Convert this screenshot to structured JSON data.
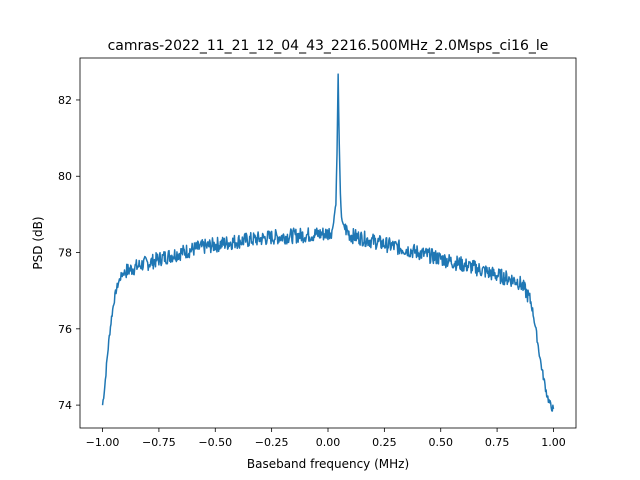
{
  "chart_data": {
    "type": "line",
    "title": "camras-2022_11_21_12_04_43_2216.500MHz_2.0Msps_ci16_le",
    "xlabel": "Baseband frequency (MHz)",
    "ylabel": "PSD (dB)",
    "xlim": [
      -1.1,
      1.1
    ],
    "ylim": [
      73.4,
      83.1
    ],
    "xticks": [
      -1.0,
      -0.75,
      -0.5,
      -0.25,
      0.0,
      0.25,
      0.5,
      0.75,
      1.0
    ],
    "xtick_labels": [
      "−1.00",
      "−0.75",
      "−0.50",
      "−0.25",
      "0.00",
      "0.25",
      "0.50",
      "0.75",
      "1.00"
    ],
    "yticks": [
      74,
      76,
      78,
      80,
      82
    ],
    "ytick_labels": [
      "74",
      "76",
      "78",
      "80",
      "82"
    ],
    "grid": false,
    "line_color": "#1f77b4",
    "series": [
      {
        "x": [
          -1.0,
          -0.99,
          -0.98,
          -0.97,
          -0.96,
          -0.95,
          -0.94,
          -0.93,
          -0.92,
          -0.91,
          -0.9,
          -0.88,
          -0.86,
          -0.84,
          -0.82,
          -0.8,
          -0.77,
          -0.74,
          -0.7,
          -0.65,
          -0.6,
          -0.55,
          -0.5,
          -0.45,
          -0.4,
          -0.35,
          -0.3,
          -0.25,
          -0.2,
          -0.15,
          -0.1,
          -0.05,
          0.0,
          0.02,
          0.035,
          0.04,
          0.045,
          0.05,
          0.055,
          0.06,
          0.065,
          0.08,
          0.1,
          0.15,
          0.2,
          0.25,
          0.3,
          0.35,
          0.4,
          0.45,
          0.5,
          0.55,
          0.6,
          0.65,
          0.7,
          0.75,
          0.8,
          0.84,
          0.86,
          0.88,
          0.9,
          0.91,
          0.92,
          0.93,
          0.94,
          0.95,
          0.96,
          0.97,
          0.98,
          0.99,
          1.0
        ],
        "y": [
          74.0,
          74.5,
          75.2,
          75.8,
          76.3,
          76.7,
          77.0,
          77.2,
          77.35,
          77.45,
          77.5,
          77.55,
          77.6,
          77.65,
          77.7,
          77.72,
          77.78,
          77.85,
          77.92,
          78.0,
          78.08,
          78.15,
          78.2,
          78.25,
          78.3,
          78.33,
          78.36,
          78.4,
          78.42,
          78.44,
          78.46,
          78.48,
          78.5,
          78.6,
          79.3,
          80.6,
          82.65,
          80.8,
          79.5,
          78.95,
          78.75,
          78.6,
          78.45,
          78.38,
          78.3,
          78.22,
          78.15,
          78.08,
          78.0,
          77.92,
          77.84,
          77.76,
          77.68,
          77.6,
          77.5,
          77.4,
          77.32,
          77.25,
          77.15,
          76.95,
          76.7,
          76.4,
          76.05,
          75.65,
          75.25,
          74.9,
          74.6,
          74.3,
          74.1,
          73.95,
          73.9
        ]
      }
    ]
  }
}
